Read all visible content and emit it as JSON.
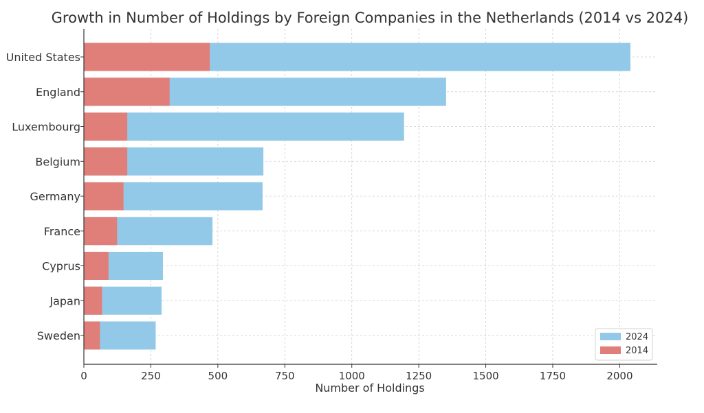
{
  "chart_data": {
    "type": "bar",
    "orientation": "horizontal",
    "title": "Growth in Number of Holdings by Foreign Companies in the Netherlands (2014 vs 2024)",
    "xlabel": "Number of Holdings",
    "ylabel": "",
    "xlim": [
      0,
      2140
    ],
    "xticks": [
      0,
      250,
      500,
      750,
      1000,
      1250,
      1500,
      1750,
      2000
    ],
    "grid": true,
    "legend_position": "lower-right",
    "categories": [
      "United States",
      "England",
      "Luxembourg",
      "Belgium",
      "Germany",
      "France",
      "Cyprus",
      "Japan",
      "Sweden"
    ],
    "series": [
      {
        "name": "2024",
        "color": "#93c9e8",
        "values": [
          2040,
          1352,
          1195,
          670,
          667,
          480,
          295,
          290,
          268
        ]
      },
      {
        "name": "2014",
        "color": "#e07f7a",
        "values": [
          470,
          320,
          162,
          162,
          148,
          124,
          92,
          68,
          60
        ]
      }
    ]
  }
}
